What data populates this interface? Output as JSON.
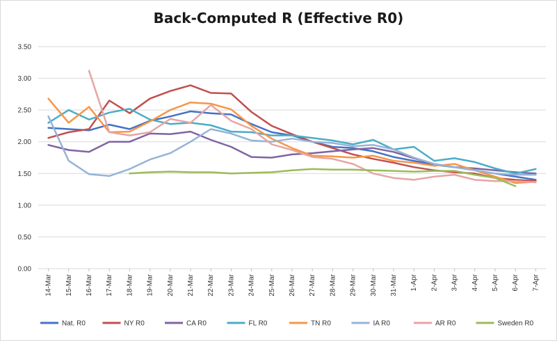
{
  "chart_data": {
    "type": "line",
    "title": "Back-Computed R (Effective R0)",
    "xlabel": "",
    "ylabel": "",
    "ylim": [
      0,
      3.5
    ],
    "y_ticks": [
      "0.00",
      "0.50",
      "1.00",
      "1.50",
      "2.00",
      "2.50",
      "3.00",
      "3.50"
    ],
    "grid": "horizontal",
    "legend_position": "bottom",
    "categories": [
      "14-Mar",
      "15-Mar",
      "16-Mar",
      "17-Mar",
      "18-Mar",
      "19-Mar",
      "20-Mar",
      "21-Mar",
      "22-Mar",
      "23-Mar",
      "24-Mar",
      "25-Mar",
      "26-Mar",
      "27-Mar",
      "28-Mar",
      "29-Mar",
      "30-Mar",
      "31-Mar",
      "1-Apr",
      "2-Apr",
      "3-Apr",
      "4-Apr",
      "5-Apr",
      "6-Apr",
      "7-Apr"
    ],
    "series": [
      {
        "name": "Nat. R0",
        "color": "#4472c4",
        "values": [
          2.22,
          2.2,
          2.18,
          2.27,
          2.2,
          2.33,
          2.4,
          2.48,
          2.45,
          2.43,
          2.28,
          2.15,
          2.1,
          2.0,
          1.92,
          1.9,
          1.85,
          1.76,
          1.7,
          1.64,
          1.6,
          1.55,
          1.5,
          1.45,
          1.4
        ]
      },
      {
        "name": "NY R0",
        "color": "#c0504d",
        "values": [
          2.06,
          2.15,
          2.2,
          2.65,
          2.45,
          2.68,
          2.8,
          2.89,
          2.77,
          2.76,
          2.47,
          2.25,
          2.12,
          2.0,
          1.9,
          1.8,
          1.73,
          1.67,
          1.6,
          1.55,
          1.52,
          1.5,
          1.43,
          1.4,
          1.38
        ]
      },
      {
        "name": "CA R0",
        "color": "#8064a2",
        "values": [
          1.95,
          1.87,
          1.84,
          2.0,
          2.0,
          2.13,
          2.12,
          2.16,
          2.03,
          1.92,
          1.76,
          1.75,
          1.8,
          1.82,
          1.85,
          1.88,
          1.9,
          1.84,
          1.74,
          1.65,
          1.6,
          1.58,
          1.55,
          1.52,
          1.5
        ]
      },
      {
        "name": "FL R0",
        "color": "#4bacc6",
        "values": [
          2.3,
          2.5,
          2.35,
          2.46,
          2.52,
          2.35,
          2.28,
          2.3,
          2.26,
          2.16,
          2.15,
          2.1,
          2.1,
          2.06,
          2.02,
          1.96,
          2.03,
          1.88,
          1.92,
          1.7,
          1.74,
          1.68,
          1.58,
          1.5,
          1.57
        ]
      },
      {
        "name": "TN R0",
        "color": "#f79646",
        "values": [
          2.68,
          2.3,
          2.55,
          2.15,
          2.16,
          2.32,
          2.5,
          2.62,
          2.6,
          2.51,
          2.25,
          2.05,
          1.9,
          1.78,
          1.77,
          1.75,
          1.78,
          1.7,
          1.67,
          1.62,
          1.65,
          1.55,
          1.45,
          1.35,
          1.37
        ]
      },
      {
        "name": "IA R0",
        "color": "#95b3d7",
        "values": [
          2.4,
          1.7,
          1.49,
          1.46,
          1.57,
          1.72,
          1.82,
          2.0,
          2.2,
          2.13,
          2.02,
          2.0,
          2.05,
          2.0,
          1.98,
          1.93,
          1.95,
          1.88,
          1.75,
          1.65,
          1.6,
          1.55,
          1.5,
          1.48,
          1.48
        ]
      },
      {
        "name": "AR R0",
        "color": "#e6a5a3",
        "values": [
          null,
          null,
          3.12,
          2.15,
          2.1,
          2.15,
          2.36,
          2.3,
          2.58,
          2.33,
          2.2,
          1.96,
          1.87,
          1.76,
          1.73,
          1.65,
          1.5,
          1.43,
          1.4,
          1.45,
          1.48,
          1.4,
          1.38,
          1.38,
          1.36
        ]
      },
      {
        "name": "Sweden R0",
        "color": "#9bbb59",
        "values": [
          null,
          null,
          null,
          null,
          1.5,
          1.52,
          1.53,
          1.52,
          1.52,
          1.5,
          1.51,
          1.52,
          1.55,
          1.57,
          1.56,
          1.56,
          1.55,
          1.54,
          1.53,
          1.54,
          1.54,
          1.48,
          1.43,
          1.3,
          null
        ]
      }
    ]
  }
}
